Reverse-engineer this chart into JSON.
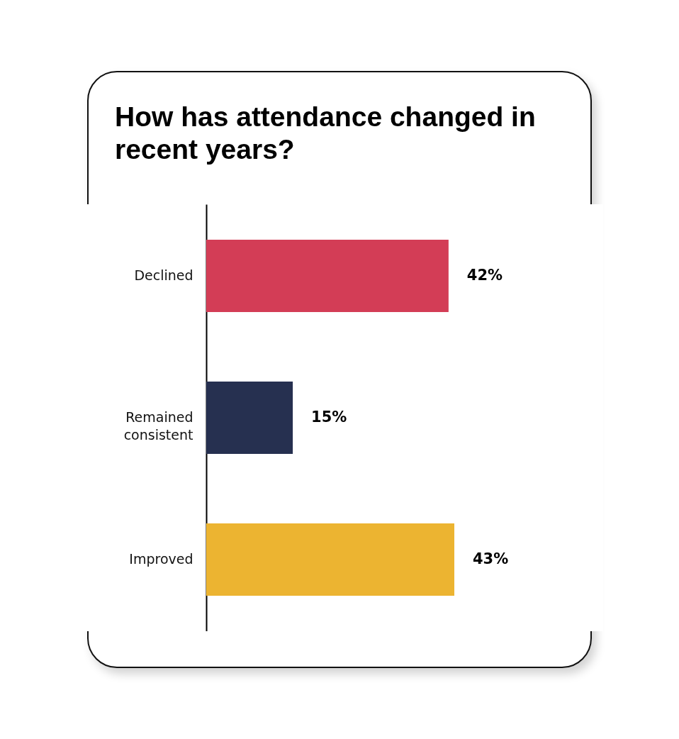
{
  "chart_data": {
    "type": "bar",
    "orientation": "horizontal",
    "title": "How has attendance changed in recent years?",
    "categories": [
      "Declined",
      "Remained consistent",
      "Improved"
    ],
    "values": [
      42,
      15,
      43
    ],
    "colors": [
      "#d33d56",
      "#263050",
      "#ecb431"
    ],
    "value_labels": [
      "42%",
      "15%",
      "43%"
    ]
  }
}
